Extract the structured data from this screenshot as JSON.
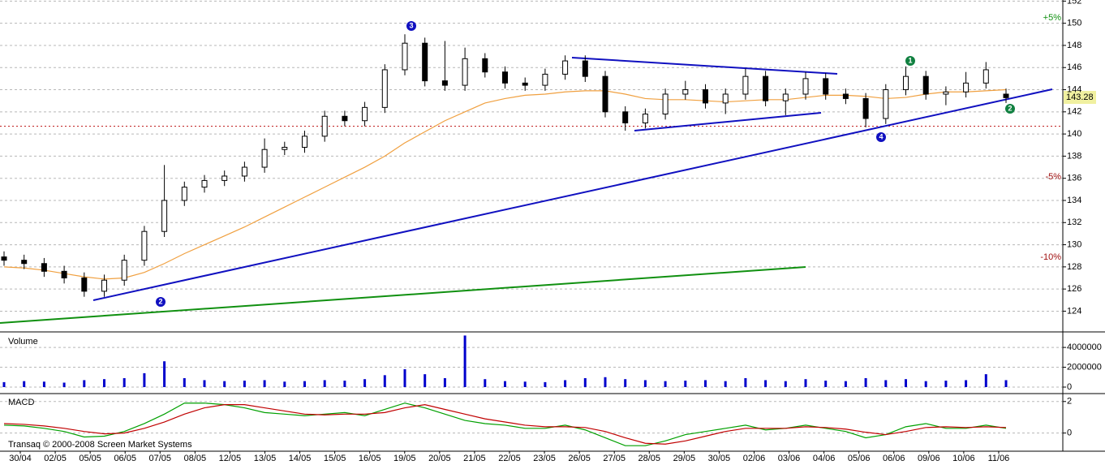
{
  "chart_data": [
    {
      "type": "candlestick",
      "open": [
        128.9,
        128.6,
        128.3,
        127.6,
        127.0,
        125.8,
        126.8,
        128.6,
        131.2,
        134.0,
        135.2,
        135.8,
        136.2,
        137.0,
        138.6,
        138.8,
        139.8,
        141.6,
        141.2,
        142.4,
        145.8,
        148.2,
        144.8,
        144.4,
        146.8,
        145.6,
        144.6,
        144.4,
        145.4,
        146.6,
        145.2,
        142.0,
        141.0,
        141.8,
        143.6,
        144.0,
        142.8,
        143.6,
        145.2,
        143.0,
        143.6,
        145.0,
        143.6,
        143.2,
        141.4,
        144.0,
        145.2,
        143.6,
        143.8,
        144.6,
        143.6
      ],
      "high": [
        129.4,
        129.1,
        128.8,
        128.1,
        127.5,
        127.3,
        129.1,
        131.7,
        137.2,
        135.7,
        136.3,
        136.7,
        137.5,
        139.6,
        139.3,
        140.3,
        142.1,
        142.1,
        142.9,
        146.3,
        149.0,
        148.7,
        148.4,
        147.8,
        147.3,
        146.1,
        145.1,
        145.9,
        147.1,
        147.1,
        145.7,
        142.5,
        142.3,
        144.1,
        144.8,
        144.5,
        144.1,
        145.9,
        145.7,
        144.1,
        145.6,
        145.5,
        144.1,
        143.7,
        144.5,
        146.1,
        145.7,
        144.3,
        145.6,
        146.5,
        144.1
      ],
      "low": [
        128.1,
        127.8,
        127.1,
        126.5,
        125.3,
        125.3,
        126.3,
        128.1,
        130.7,
        133.5,
        134.7,
        135.3,
        135.7,
        136.5,
        138.1,
        138.3,
        139.3,
        140.7,
        140.7,
        141.9,
        145.3,
        144.3,
        143.9,
        143.9,
        145.1,
        144.1,
        143.9,
        143.9,
        144.9,
        144.7,
        141.5,
        140.3,
        140.5,
        141.3,
        143.1,
        142.3,
        141.8,
        143.1,
        142.5,
        141.7,
        143.1,
        143.1,
        142.7,
        140.6,
        140.9,
        143.5,
        143.1,
        142.6,
        143.3,
        144.1,
        142.8
      ],
      "close": [
        128.6,
        128.3,
        127.6,
        127.0,
        125.8,
        126.8,
        128.6,
        131.2,
        134.0,
        135.2,
        135.8,
        136.2,
        137.0,
        138.6,
        138.8,
        139.8,
        141.6,
        141.2,
        142.4,
        145.8,
        148.2,
        144.8,
        144.4,
        146.8,
        145.6,
        144.6,
        144.4,
        145.4,
        146.6,
        145.2,
        142.0,
        141.0,
        141.8,
        143.6,
        144.0,
        142.8,
        143.6,
        145.2,
        143.0,
        143.6,
        145.0,
        143.6,
        143.2,
        141.4,
        144.0,
        145.2,
        143.6,
        143.8,
        144.6,
        145.8,
        143.28
      ],
      "moving_average": {
        "color": "#f0a040",
        "values": [
          128.0,
          127.9,
          127.7,
          127.4,
          127.1,
          126.9,
          127.0,
          127.5,
          128.3,
          129.2,
          130.0,
          130.8,
          131.6,
          132.5,
          133.4,
          134.3,
          135.2,
          136.1,
          137.0,
          138.0,
          139.2,
          140.2,
          141.2,
          142.0,
          142.8,
          143.2,
          143.5,
          143.6,
          143.8,
          143.9,
          143.9,
          143.6,
          143.2,
          143.1,
          143.1,
          143.0,
          142.9,
          143.0,
          143.1,
          143.1,
          143.3,
          143.5,
          143.5,
          143.4,
          143.2,
          143.3,
          143.6,
          143.8,
          143.8,
          143.9,
          144.0
        ]
      },
      "reference_line": 140.7,
      "ylim": [
        122.2,
        152.1
      ],
      "yticks": [
        124,
        126,
        128,
        130,
        132,
        134,
        136,
        138,
        140,
        142,
        144,
        146,
        148,
        150,
        152
      ],
      "grid": true,
      "annotations": [
        "+5%",
        "-5%",
        "-10%"
      ],
      "wave_labels": [
        "3",
        "2",
        "1",
        "4",
        "2"
      ]
    },
    {
      "type": "bar",
      "title": "Volume",
      "color": "#0000cc",
      "values": [
        500000,
        600000,
        550000,
        450000,
        700000,
        800000,
        900000,
        1400000,
        2600000,
        900000,
        700000,
        600000,
        650000,
        700000,
        550000,
        600000,
        700000,
        650000,
        800000,
        1200000,
        1800000,
        1300000,
        900000,
        5200000,
        800000,
        600000,
        550000,
        500000,
        700000,
        900000,
        1000000,
        800000,
        700000,
        600000,
        650000,
        700000,
        600000,
        900000,
        700000,
        600000,
        800000,
        650000,
        600000,
        900000,
        700000,
        800000,
        600000,
        650000,
        700000,
        1300000,
        700000
      ],
      "ylim": [
        0,
        5400000
      ],
      "yticks": [
        0,
        2000000,
        4000000
      ],
      "grid": true
    },
    {
      "type": "line",
      "title": "MACD",
      "series": [
        {
          "color": "#00a000",
          "values": [
            0.5,
            0.45,
            0.3,
            0.1,
            -0.25,
            -0.2,
            0.1,
            0.6,
            1.2,
            1.9,
            1.9,
            1.8,
            1.6,
            1.3,
            1.2,
            1.1,
            1.2,
            1.3,
            1.1,
            1.5,
            1.9,
            1.6,
            1.2,
            0.8,
            0.6,
            0.5,
            0.3,
            0.3,
            0.5,
            0.2,
            -0.3,
            -0.8,
            -0.8,
            -0.5,
            -0.1,
            0.1,
            0.3,
            0.5,
            0.2,
            0.3,
            0.5,
            0.3,
            0.1,
            -0.3,
            -0.1,
            0.4,
            0.6,
            0.3,
            0.3,
            0.5,
            0.3
          ]
        },
        {
          "color": "#c00000",
          "values": [
            0.6,
            0.55,
            0.45,
            0.3,
            0.1,
            -0.05,
            0.0,
            0.3,
            0.7,
            1.2,
            1.6,
            1.8,
            1.8,
            1.6,
            1.4,
            1.2,
            1.15,
            1.2,
            1.2,
            1.3,
            1.6,
            1.8,
            1.5,
            1.2,
            0.9,
            0.7,
            0.5,
            0.4,
            0.4,
            0.35,
            0.1,
            -0.3,
            -0.65,
            -0.7,
            -0.5,
            -0.2,
            0.1,
            0.3,
            0.3,
            0.3,
            0.4,
            0.35,
            0.25,
            0.05,
            -0.1,
            0.1,
            0.35,
            0.4,
            0.35,
            0.4,
            0.35
          ]
        }
      ],
      "ylim": [
        -1.1,
        2.4
      ],
      "yticks": [
        0,
        2
      ],
      "grid": true
    }
  ],
  "time_axis": {
    "labels": [
      "30/04",
      "02/05",
      "05/05",
      "06/05",
      "07/05",
      "08/05",
      "12/05",
      "13/05",
      "14/05",
      "15/05",
      "16/05",
      "19/05",
      "20/05",
      "21/05",
      "22/05",
      "23/05",
      "26/05",
      "27/05",
      "28/05",
      "29/05",
      "30/05",
      "02/06",
      "03/06",
      "04/06",
      "05/06",
      "06/06",
      "09/06",
      "10/06",
      "11/06"
    ]
  },
  "footer": "Transaq © 2000-2008 Screen Market Systems"
}
